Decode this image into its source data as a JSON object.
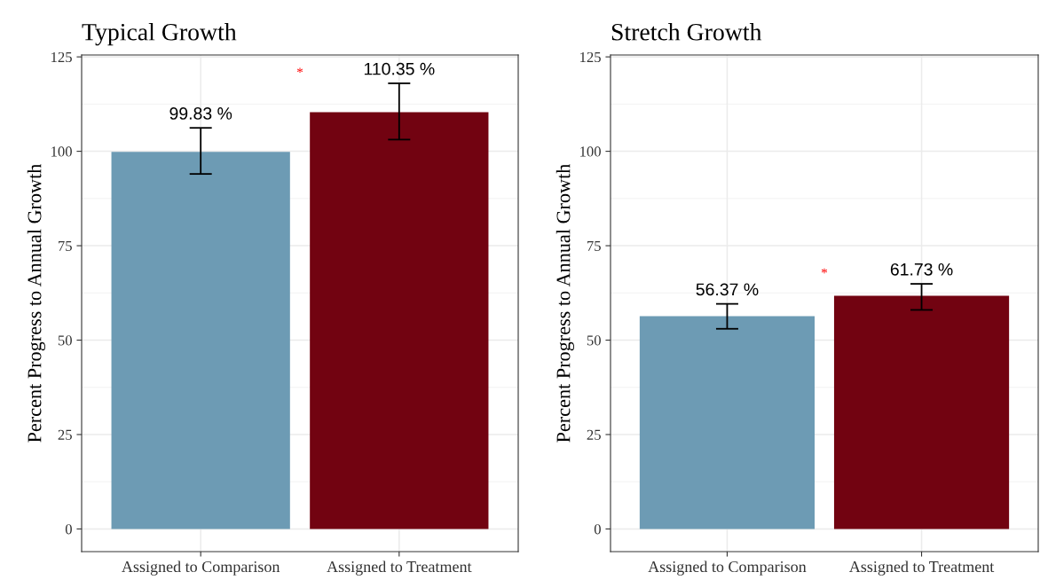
{
  "chart_data": [
    {
      "type": "bar",
      "title": "Typical Growth",
      "ylabel": "Percent Progress to Annual Growth",
      "categories": [
        "Assigned to Comparison",
        "Assigned to Treatment"
      ],
      "values": [
        99.83,
        110.35
      ],
      "colors": [
        "#6d9bb4",
        "#720311"
      ],
      "errors": [
        [
          94.0,
          106.2
        ],
        [
          103.1,
          118.0
        ]
      ],
      "value_labels": [
        "99.83 %",
        "110.35 %"
      ],
      "ylim": [
        -6,
        125.5
      ],
      "yticks": [
        0,
        25,
        50,
        75,
        100,
        125
      ],
      "grid": true,
      "annotations": [
        "*"
      ]
    },
    {
      "type": "bar",
      "title": "Stretch Growth",
      "ylabel": "Percent Progress to Annual Growth",
      "categories": [
        "Assigned to Comparison",
        "Assigned to Treatment"
      ],
      "values": [
        56.37,
        61.73
      ],
      "colors": [
        "#6d9bb4",
        "#720311"
      ],
      "errors": [
        [
          53.0,
          59.6
        ],
        [
          58.0,
          64.9
        ]
      ],
      "value_labels": [
        "56.37 %",
        "61.73 %"
      ],
      "ylim": [
        -6,
        125.5
      ],
      "yticks": [
        0,
        25,
        50,
        75,
        100,
        125
      ],
      "grid": true,
      "annotations": [
        "*"
      ]
    }
  ]
}
